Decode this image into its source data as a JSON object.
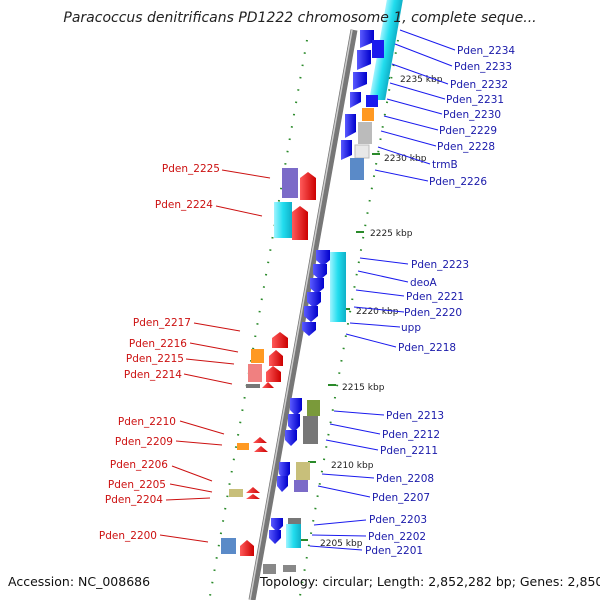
{
  "title": "Paracoccus denitrificans PD1222 chromosome 1, complete seque...",
  "accession": "Accession: NC_008686",
  "topology": "Topology: circular; Length: 2,852,282 bp; Genes: 2,850",
  "scale_labels": [
    "2235 kbp",
    "2230 kbp",
    "2225 kbp",
    "2220 kbp",
    "2215 kbp",
    "2210 kbp",
    "2205 kbp"
  ],
  "genes_right": [
    "Pden_2234",
    "Pden_2233",
    "Pden_2232",
    "Pden_2231",
    "Pden_2230",
    "Pden_2229",
    "Pden_2228",
    "trmB",
    "Pden_2226",
    "Pden_2223",
    "deoA",
    "Pden_2221",
    "Pden_2220",
    "upp",
    "Pden_2218",
    "Pden_2213",
    "Pden_2212",
    "Pden_2211",
    "Pden_2208",
    "Pden_2207",
    "Pden_2203",
    "Pden_2202",
    "Pden_2201"
  ],
  "genes_left": [
    "Pden_2225",
    "Pden_2224",
    "Pden_2217",
    "Pden_2216",
    "Pden_2215",
    "Pden_2214",
    "Pden_2210",
    "Pden_2209",
    "Pden_2206",
    "Pden_2205",
    "Pden_2204",
    "Pden_2200"
  ],
  "colors": {
    "forward_gene": "#1a1aee",
    "reverse_gene": "#ee1111",
    "backbone": "#888888",
    "label_right": "#1a1aaa",
    "label_left": "#cc1111",
    "tick": "#2a8a2a",
    "cyan_feature": "#22ddee",
    "orange_feature": "#ff9922",
    "khaki_feature": "#c8bf7a",
    "purple_feature": "#7b6bc8",
    "steel_feature": "#5a8ac8",
    "olive_feature": "#7a9a3a"
  }
}
